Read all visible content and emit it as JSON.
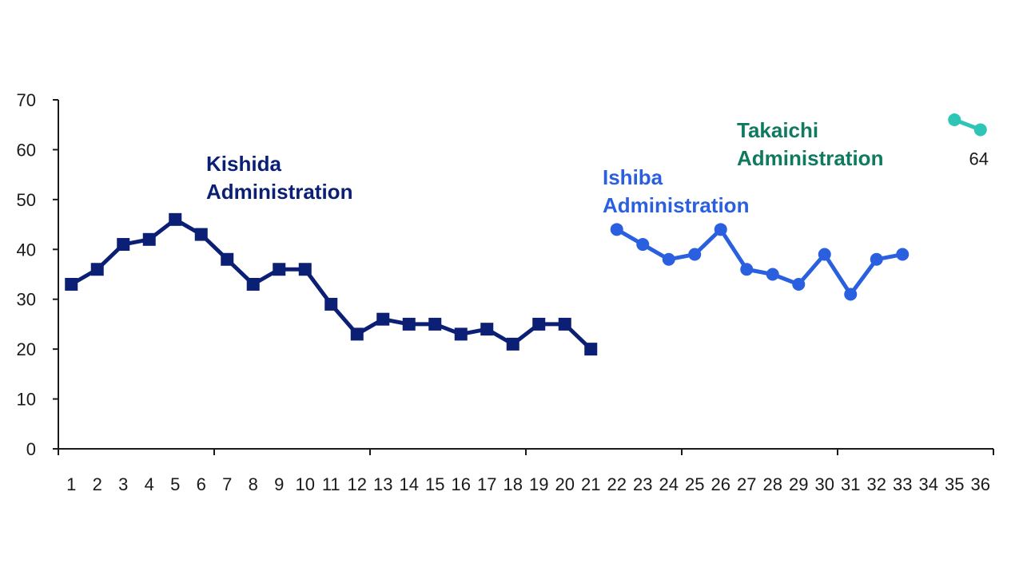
{
  "chart_data": {
    "type": "line",
    "x": [
      1,
      2,
      3,
      4,
      5,
      6,
      7,
      8,
      9,
      10,
      11,
      12,
      13,
      14,
      15,
      16,
      17,
      18,
      19,
      20,
      21,
      22,
      23,
      24,
      25,
      26,
      27,
      28,
      29,
      30,
      31,
      32,
      33,
      34,
      35,
      36
    ],
    "x_tick_labels": [
      "1",
      "2",
      "3",
      "4",
      "5",
      "6",
      "7",
      "8",
      "9",
      "10",
      "11",
      "12",
      "13",
      "14",
      "15",
      "16",
      "17",
      "18",
      "19",
      "20",
      "21",
      "22",
      "23",
      "24",
      "25",
      "26",
      "27",
      "28",
      "29",
      "30",
      "31",
      "32",
      "33",
      "34",
      "35",
      "36"
    ],
    "ylim": [
      0,
      70
    ],
    "y_ticks": [
      0,
      10,
      20,
      30,
      40,
      50,
      60,
      70
    ],
    "grid": false,
    "series": [
      {
        "name": "Kishida Administration",
        "name_lines": [
          "Kishida",
          "Administration"
        ],
        "color": "#0b1f75",
        "marker": "square",
        "x": [
          1,
          2,
          3,
          4,
          5,
          6,
          7,
          8,
          9,
          10,
          11,
          12,
          13,
          14,
          15,
          16,
          17,
          18,
          19,
          20,
          21
        ],
        "values": [
          33,
          36,
          41,
          42,
          46,
          43,
          38,
          33,
          36,
          36,
          29,
          23,
          26,
          25,
          25,
          23,
          24,
          21,
          25,
          25,
          20
        ]
      },
      {
        "name": "Ishiba Administration",
        "name_lines": [
          "Ishiba",
          "Administration"
        ],
        "color": "#2a5fe0",
        "marker": "circle",
        "x": [
          22,
          23,
          24,
          25,
          26,
          27,
          28,
          29,
          30,
          31,
          32,
          33
        ],
        "values": [
          44,
          41,
          38,
          39,
          44,
          36,
          35,
          33,
          39,
          31,
          38,
          39
        ]
      },
      {
        "name": "Takaichi Administration",
        "name_lines": [
          "Takaichi",
          "Administration"
        ],
        "label_color": "#0f7a60",
        "color": "#2ec4b6",
        "marker": "circle",
        "x": [
          35,
          36
        ],
        "values": [
          66,
          64
        ]
      }
    ],
    "annotations": [
      {
        "text": "64",
        "series": 2,
        "point": 1
      }
    ]
  }
}
